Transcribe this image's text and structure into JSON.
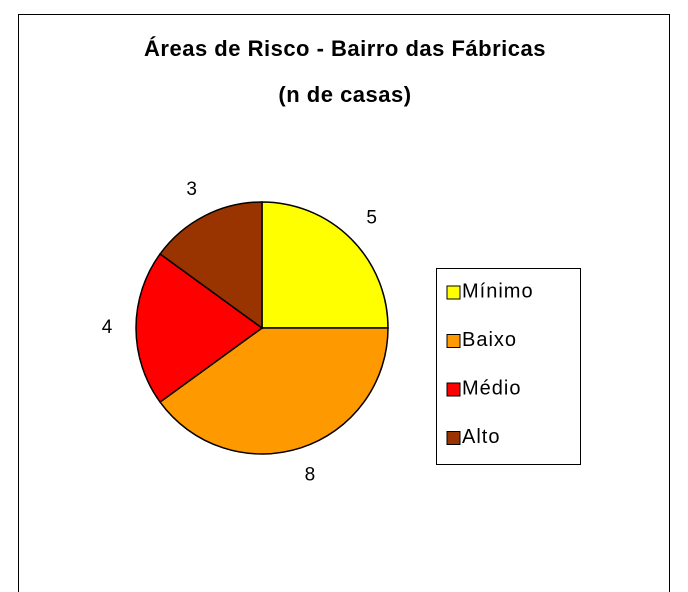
{
  "chart_data": {
    "type": "pie",
    "title": "Áreas de Risco - Bairro das Fábricas",
    "subtitle": "(n de casas)",
    "categories": [
      "Mínimo",
      "Baixo",
      "Médio",
      "Alto"
    ],
    "values": [
      5,
      8,
      4,
      3
    ],
    "colors": [
      "#ffff00",
      "#ff9900",
      "#ff0000",
      "#993300"
    ],
    "legend": "right"
  }
}
